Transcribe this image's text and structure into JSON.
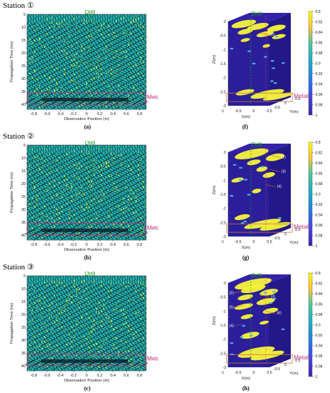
{
  "stations": [
    {
      "label": "Station ①",
      "radar_panel": "(a)",
      "volume_panel": "(f)",
      "annotations": [
        "(1)"
      ]
    },
    {
      "label": "Station ②",
      "radar_panel": "(b)",
      "volume_panel": "(g)",
      "annotations": [
        "(2)",
        "(3)",
        "(4)"
      ]
    },
    {
      "label": "Station ③",
      "radar_panel": "(c)",
      "volume_panel": "(h)",
      "annotations": [
        "(2)",
        "(3)",
        "(5)",
        "(6)",
        "(4)"
      ]
    }
  ],
  "chart_data": [
    {
      "type": "heatmap",
      "panel": "(a)",
      "xlabel": "Observation Position (m)",
      "ylabel": "Propagation Time (ns)",
      "xlim": [
        -0.9,
        0.9
      ],
      "ylim": [
        5,
        42
      ],
      "xticks": [
        "-0.8",
        "-0.6",
        "-0.4",
        "-0.2",
        "0",
        "0.2",
        "0.4",
        "0.6",
        "0.8"
      ],
      "yticks": [
        "5",
        "10",
        "15",
        "20",
        "25",
        "30",
        "35",
        "40"
      ],
      "annotations": [
        "Drill",
        "Metal"
      ]
    },
    {
      "type": "heatmap",
      "panel": "(f)",
      "xlabel": "X(m)",
      "ylabel": "Z(m)",
      "zlabel": "Y(m)",
      "xticks": [
        "-1",
        "-0.5",
        "0",
        "0.5"
      ],
      "yticks": [
        "0",
        "-0.5",
        "-1",
        "-1.5",
        "-2",
        "-2.5",
        "-3"
      ],
      "ytick_depth": [
        "-0.5",
        "0",
        "0.5"
      ],
      "colorbar": {
        "min": -1,
        "max": -0.8,
        "ticks": [
          "-0.8",
          "-0.82",
          "-0.84",
          "-0.86",
          "-0.88",
          "-0.9",
          "-0.92",
          "-0.94",
          "-0.96",
          "-0.98",
          "-1"
        ]
      },
      "annotations": [
        "Drill",
        "Metal",
        "(1)"
      ]
    },
    {
      "type": "heatmap",
      "panel": "(b)",
      "xlabel": "Observation Position (m)",
      "ylabel": "Propagation Time (ns)",
      "xlim": [
        -0.9,
        0.9
      ],
      "ylim": [
        5,
        42
      ],
      "xticks": [
        "-0.8",
        "-0.6",
        "-0.4",
        "-0.2",
        "0",
        "0.2",
        "0.4",
        "0.6",
        "0.8"
      ],
      "yticks": [
        "5",
        "10",
        "15",
        "20",
        "25",
        "30",
        "35",
        "40"
      ],
      "annotations": [
        "Drill",
        "Metal"
      ]
    },
    {
      "type": "heatmap",
      "panel": "(g)",
      "xlabel": "X(m)",
      "ylabel": "Z(m)",
      "zlabel": "Y(m)",
      "xticks": [
        "-1",
        "-0.5",
        "0",
        "0.5"
      ],
      "yticks": [
        "0",
        "-0.5",
        "-1",
        "-1.5",
        "-2",
        "-2.5",
        "-3"
      ],
      "ytick_depth": [
        "-0.5",
        "0",
        "0.5"
      ],
      "colorbar": {
        "min": -1,
        "max": -0.8,
        "ticks": [
          "-0.8",
          "-0.82",
          "-0.84",
          "-0.86",
          "-0.88",
          "-0.9",
          "-0.92",
          "-0.94",
          "-0.96",
          "-0.98",
          "-1"
        ]
      },
      "annotations": [
        "Drill",
        "Metal",
        "(2)",
        "(3)",
        "(4)"
      ]
    },
    {
      "type": "heatmap",
      "panel": "(c)",
      "xlabel": "Observation Position (m)",
      "ylabel": "Propagation Time (ns)",
      "xlim": [
        -0.9,
        0.9
      ],
      "ylim": [
        5,
        42
      ],
      "xticks": [
        "-0.8",
        "-0.6",
        "-0.4",
        "-0.2",
        "0",
        "0.2",
        "0.4",
        "0.6",
        "0.8"
      ],
      "yticks": [
        "5",
        "10",
        "15",
        "20",
        "25",
        "30",
        "35",
        "40"
      ],
      "annotations": [
        "Drill",
        "Metal"
      ]
    },
    {
      "type": "heatmap",
      "panel": "(h)",
      "xlabel": "X(m)",
      "ylabel": "Z(m)",
      "zlabel": "Y(m)",
      "xticks": [
        "-1",
        "-0.5",
        "0",
        "0.5"
      ],
      "yticks": [
        "0",
        "-0.5",
        "-1",
        "-1.5",
        "-2",
        "-2.5",
        "-3"
      ],
      "ytick_depth": [
        "-0.5",
        "0",
        "0.5"
      ],
      "colorbar": {
        "min": -1,
        "max": -0.8,
        "ticks": [
          "-0.8",
          "-0.82",
          "-0.84",
          "-0.86",
          "-0.88",
          "-0.9",
          "-0.92",
          "-0.94",
          "-0.96",
          "-0.98",
          "-1"
        ]
      },
      "annotations": [
        "Drill",
        "Metal",
        "(2)",
        "(3)",
        "(5)",
        "(6)",
        "(4)"
      ]
    }
  ],
  "colors": {
    "radar_bg": "#20b2b0",
    "volume_bg": "#2b1e9a",
    "anomaly": "#f7f53a",
    "drill": "#1a9a1a",
    "metal": "#c0307a"
  }
}
